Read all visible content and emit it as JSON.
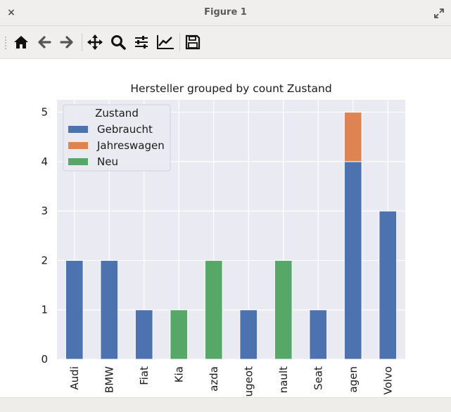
{
  "window": {
    "title": "Figure 1",
    "close_glyph": "×",
    "maximize_icon": "maximize-icon"
  },
  "toolbar": {
    "buttons": [
      {
        "name": "home-button",
        "icon": "home-icon"
      },
      {
        "name": "back-button",
        "icon": "arrow-left-icon"
      },
      {
        "name": "forward-button",
        "icon": "arrow-right-icon"
      },
      {
        "name": "pan-button",
        "icon": "move-icon"
      },
      {
        "name": "zoom-button",
        "icon": "magnifier-icon"
      },
      {
        "name": "subplots-button",
        "icon": "sliders-icon"
      },
      {
        "name": "axes-edit-button",
        "icon": "line-chart-icon"
      },
      {
        "name": "save-button",
        "icon": "floppy-disk-icon"
      }
    ]
  },
  "colors": {
    "plot_background": "#eaeaf2",
    "grid": "#ffffff",
    "gebraucht": "#4c72b0",
    "jahreswagen": "#dd8452",
    "neu": "#55a868"
  },
  "chart_data": {
    "type": "bar",
    "stacked": true,
    "title": "Hersteller grouped by count Zustand",
    "xlabel": "",
    "ylabel": "",
    "categories": [
      "Audi",
      "BMW",
      "Fiat",
      "Kia",
      "Mazda",
      "Peugeot",
      "Renault",
      "Seat",
      "Volkswagen",
      "Volvo"
    ],
    "category_labels_visible": [
      "Audi",
      "BMW",
      "Fiat",
      "Kia",
      "azda",
      "ugeot",
      "nault",
      "Seat",
      "agen",
      "Volvo"
    ],
    "series": [
      {
        "name": "Gebraucht",
        "color": "#4c72b0",
        "values": [
          2,
          2,
          1,
          0,
          0,
          1,
          0,
          1,
          4,
          3
        ]
      },
      {
        "name": "Jahreswagen",
        "color": "#dd8452",
        "values": [
          0,
          0,
          0,
          0,
          0,
          0,
          0,
          0,
          1,
          0
        ]
      },
      {
        "name": "Neu",
        "color": "#55a868",
        "values": [
          0,
          0,
          0,
          1,
          2,
          0,
          2,
          0,
          0,
          0
        ]
      }
    ],
    "ylim": [
      0,
      5.25
    ],
    "yticks": [
      0,
      1,
      2,
      3,
      4,
      5
    ],
    "legend": {
      "title": "Zustand",
      "placement": "top-left"
    },
    "grid": true
  }
}
